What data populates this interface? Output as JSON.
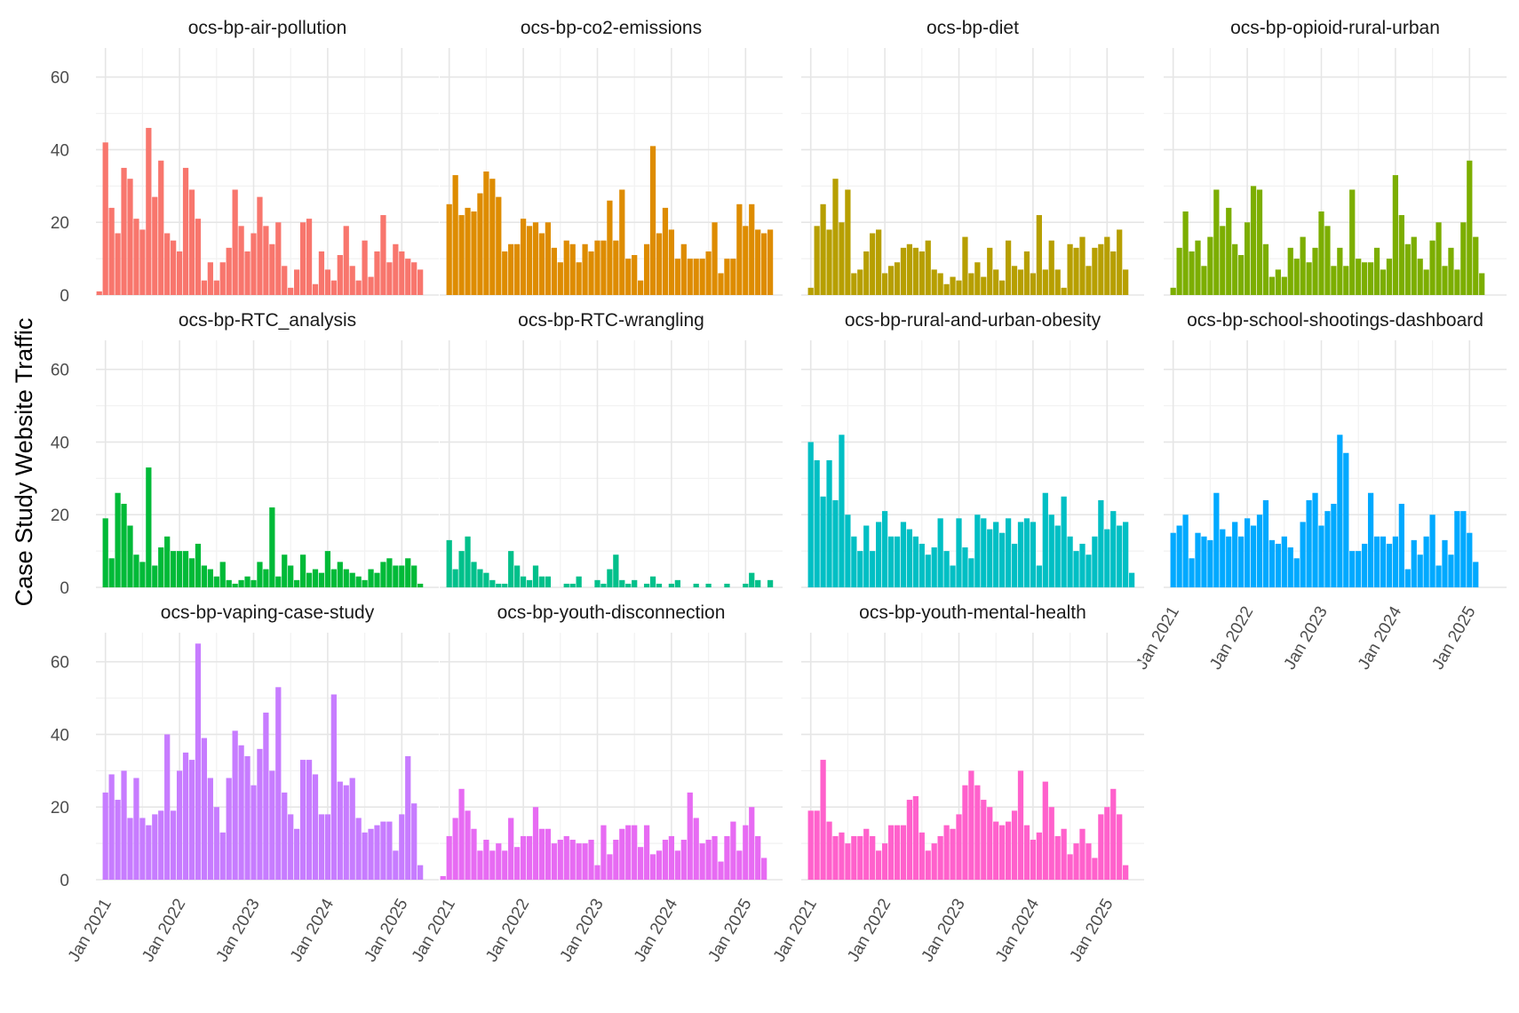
{
  "chart_data": {
    "type": "bar",
    "title": "",
    "xlabel": "",
    "ylabel": "Case Study Website Traffic",
    "ylim": [
      0,
      68
    ],
    "yticks": [
      0,
      20,
      40,
      60
    ],
    "xlim": [
      "2020-11-15",
      "2025-07-01"
    ],
    "x_tick_labels": [
      "Jan 2021",
      "Jan 2022",
      "Jan 2023",
      "Jan 2024",
      "Jan 2025"
    ],
    "x_tick_dates": [
      "2021-01",
      "2022-01",
      "2023-01",
      "2024-01",
      "2025-01"
    ],
    "months": [
      "2020-12",
      "2021-01",
      "2021-02",
      "2021-03",
      "2021-04",
      "2021-05",
      "2021-06",
      "2021-07",
      "2021-08",
      "2021-09",
      "2021-10",
      "2021-11",
      "2021-12",
      "2022-01",
      "2022-02",
      "2022-03",
      "2022-04",
      "2022-05",
      "2022-06",
      "2022-07",
      "2022-08",
      "2022-09",
      "2022-10",
      "2022-11",
      "2022-12",
      "2023-01",
      "2023-02",
      "2023-03",
      "2023-04",
      "2023-05",
      "2023-06",
      "2023-07",
      "2023-08",
      "2023-09",
      "2023-10",
      "2023-11",
      "2023-12",
      "2024-01",
      "2024-02",
      "2024-03",
      "2024-04",
      "2024-05",
      "2024-06",
      "2024-07",
      "2024-08",
      "2024-09",
      "2024-10",
      "2024-11",
      "2024-12",
      "2025-01",
      "2025-02",
      "2025-03",
      "2025-04",
      "2025-05"
    ],
    "grid": true,
    "legend": "none",
    "facets": [
      {
        "name": "ocs-bp-air-pollution",
        "color": "#F8766D",
        "values": [
          1,
          42,
          24,
          17,
          35,
          32,
          21,
          18,
          46,
          27,
          37,
          17,
          15,
          12,
          35,
          29,
          21,
          4,
          9,
          4,
          9,
          13,
          29,
          19,
          12,
          17,
          27,
          19,
          14,
          20,
          8,
          2,
          7,
          20,
          21,
          3,
          12,
          7,
          4,
          11,
          19,
          8,
          4,
          15,
          5,
          12,
          22,
          9,
          14,
          12,
          10,
          9,
          7,
          0
        ]
      },
      {
        "name": "ocs-bp-co2-emissions",
        "color": "#DE8C00",
        "values": [
          0,
          25,
          33,
          22,
          24,
          23,
          28,
          34,
          32,
          27,
          12,
          14,
          14,
          21,
          19,
          20,
          17,
          20,
          13,
          9,
          15,
          14,
          9,
          14,
          12,
          15,
          15,
          26,
          15,
          29,
          10,
          11,
          4,
          14,
          41,
          17,
          24,
          18,
          10,
          14,
          10,
          10,
          10,
          12,
          20,
          6,
          10,
          10,
          25,
          19,
          25,
          18,
          17,
          18
        ]
      },
      {
        "name": "ocs-bp-diet",
        "color": "#B79F00",
        "values": [
          0,
          2,
          19,
          25,
          18,
          32,
          20,
          29,
          6,
          7,
          12,
          17,
          18,
          6,
          8,
          9,
          13,
          14,
          13,
          12,
          15,
          7,
          6,
          3,
          5,
          4,
          16,
          6,
          9,
          5,
          13,
          7,
          4,
          15,
          8,
          7,
          12,
          6,
          22,
          7,
          15,
          7,
          2,
          14,
          13,
          16,
          8,
          13,
          14,
          16,
          12,
          18,
          7,
          0
        ]
      },
      {
        "name": "ocs-bp-opioid-rural-urban",
        "color": "#7CAE00",
        "values": [
          0,
          2,
          13,
          23,
          12,
          15,
          8,
          16,
          29,
          19,
          24,
          14,
          11,
          20,
          30,
          29,
          14,
          5,
          7,
          5,
          13,
          10,
          16,
          9,
          13,
          23,
          19,
          8,
          13,
          8,
          29,
          10,
          9,
          9,
          13,
          7,
          10,
          33,
          22,
          14,
          16,
          10,
          7,
          15,
          20,
          8,
          13,
          7,
          20,
          37,
          16,
          6,
          0,
          0
        ]
      },
      {
        "name": "ocs-bp-RTC_analysis",
        "color": "#00BA38",
        "values": [
          0,
          19,
          8,
          26,
          23,
          17,
          9,
          7,
          33,
          6,
          11,
          14,
          10,
          10,
          10,
          8,
          12,
          6,
          5,
          3,
          7,
          2,
          1,
          2,
          3,
          2,
          7,
          5,
          22,
          3,
          9,
          6,
          2,
          9,
          4,
          5,
          4,
          10,
          5,
          7,
          5,
          4,
          3,
          2,
          5,
          4,
          7,
          8,
          6,
          6,
          8,
          6,
          1,
          0
        ]
      },
      {
        "name": "ocs-bp-RTC-wrangling",
        "color": "#00C08B",
        "values": [
          0,
          13,
          5,
          10,
          14,
          7,
          5,
          4,
          2,
          1,
          1,
          10,
          6,
          3,
          2,
          6,
          3,
          3,
          0,
          0,
          1,
          1,
          3,
          0,
          0,
          2,
          1,
          5,
          9,
          2,
          1,
          2,
          0,
          1,
          3,
          1,
          0,
          1,
          2,
          0,
          0,
          1,
          0,
          1,
          0,
          0,
          1,
          0,
          0,
          1,
          4,
          2,
          0,
          2
        ]
      },
      {
        "name": "ocs-bp-rural-and-urban-obesity",
        "color": "#00BFC4",
        "values": [
          0,
          40,
          35,
          25,
          35,
          24,
          42,
          20,
          14,
          10,
          17,
          10,
          18,
          21,
          14,
          14,
          18,
          16,
          14,
          12,
          9,
          11,
          19,
          10,
          6,
          19,
          11,
          8,
          20,
          19,
          16,
          18,
          15,
          19,
          12,
          18,
          19,
          18,
          6,
          26,
          20,
          17,
          25,
          14,
          10,
          12,
          9,
          14,
          24,
          16,
          21,
          17,
          18,
          4
        ]
      },
      {
        "name": "ocs-bp-school-shootings-dashboard",
        "color": "#00A9FF",
        "values": [
          0,
          15,
          17,
          20,
          8,
          15,
          14,
          13,
          26,
          16,
          14,
          18,
          14,
          19,
          17,
          20,
          24,
          13,
          12,
          14,
          11,
          8,
          18,
          24,
          26,
          17,
          21,
          23,
          42,
          37,
          10,
          10,
          12,
          26,
          14,
          14,
          12,
          14,
          23,
          5,
          13,
          9,
          14,
          20,
          6,
          13,
          9,
          21,
          21,
          15,
          7,
          0,
          0,
          0
        ]
      },
      {
        "name": "ocs-bp-vaping-case-study",
        "color": "#C77CFF",
        "values": [
          0,
          24,
          29,
          22,
          30,
          17,
          28,
          17,
          15,
          18,
          19,
          40,
          19,
          30,
          35,
          33,
          65,
          39,
          28,
          20,
          13,
          28,
          41,
          37,
          34,
          26,
          36,
          46,
          30,
          53,
          24,
          18,
          14,
          33,
          33,
          29,
          18,
          18,
          51,
          27,
          26,
          28,
          17,
          13,
          14,
          15,
          16,
          16,
          8,
          18,
          34,
          21,
          4,
          0
        ]
      },
      {
        "name": "ocs-bp-youth-disconnection",
        "color": "#E76BF3",
        "values": [
          1,
          12,
          17,
          25,
          19,
          14,
          8,
          11,
          8,
          10,
          8,
          17,
          9,
          12,
          12,
          20,
          14,
          14,
          10,
          11,
          12,
          11,
          10,
          10,
          11,
          4,
          15,
          7,
          11,
          14,
          15,
          15,
          9,
          15,
          7,
          8,
          11,
          12,
          8,
          11,
          24,
          17,
          10,
          11,
          12,
          5,
          12,
          16,
          8,
          15,
          20,
          12,
          6,
          0
        ]
      },
      {
        "name": "ocs-bp-youth-mental-health",
        "color": "#FF61CC",
        "values": [
          0,
          19,
          19,
          33,
          16,
          12,
          13,
          10,
          12,
          12,
          14,
          12,
          8,
          10,
          15,
          15,
          15,
          22,
          23,
          13,
          8,
          10,
          12,
          15,
          14,
          18,
          26,
          30,
          26,
          22,
          20,
          16,
          15,
          16,
          19,
          30,
          15,
          11,
          13,
          27,
          20,
          12,
          14,
          7,
          10,
          14,
          10,
          6,
          18,
          20,
          25,
          18,
          4,
          0
        ]
      }
    ]
  }
}
